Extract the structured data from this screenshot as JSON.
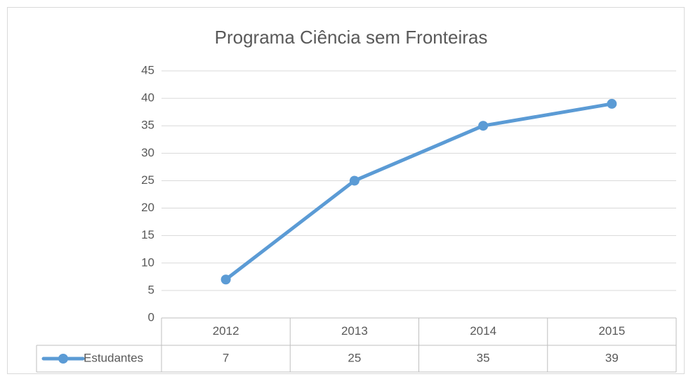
{
  "chart_data": {
    "type": "line",
    "title": "Programa Ciência sem Fronteiras",
    "categories": [
      "2012",
      "2013",
      "2014",
      "2015"
    ],
    "series": [
      {
        "name": "Estudantes",
        "color": "#5b9bd5",
        "values": [
          7,
          25,
          35,
          39
        ]
      }
    ],
    "ylim": [
      0,
      45
    ],
    "yticks": [
      0,
      5,
      10,
      15,
      20,
      25,
      30,
      35,
      40,
      45
    ],
    "grid": true,
    "data_table": true
  }
}
